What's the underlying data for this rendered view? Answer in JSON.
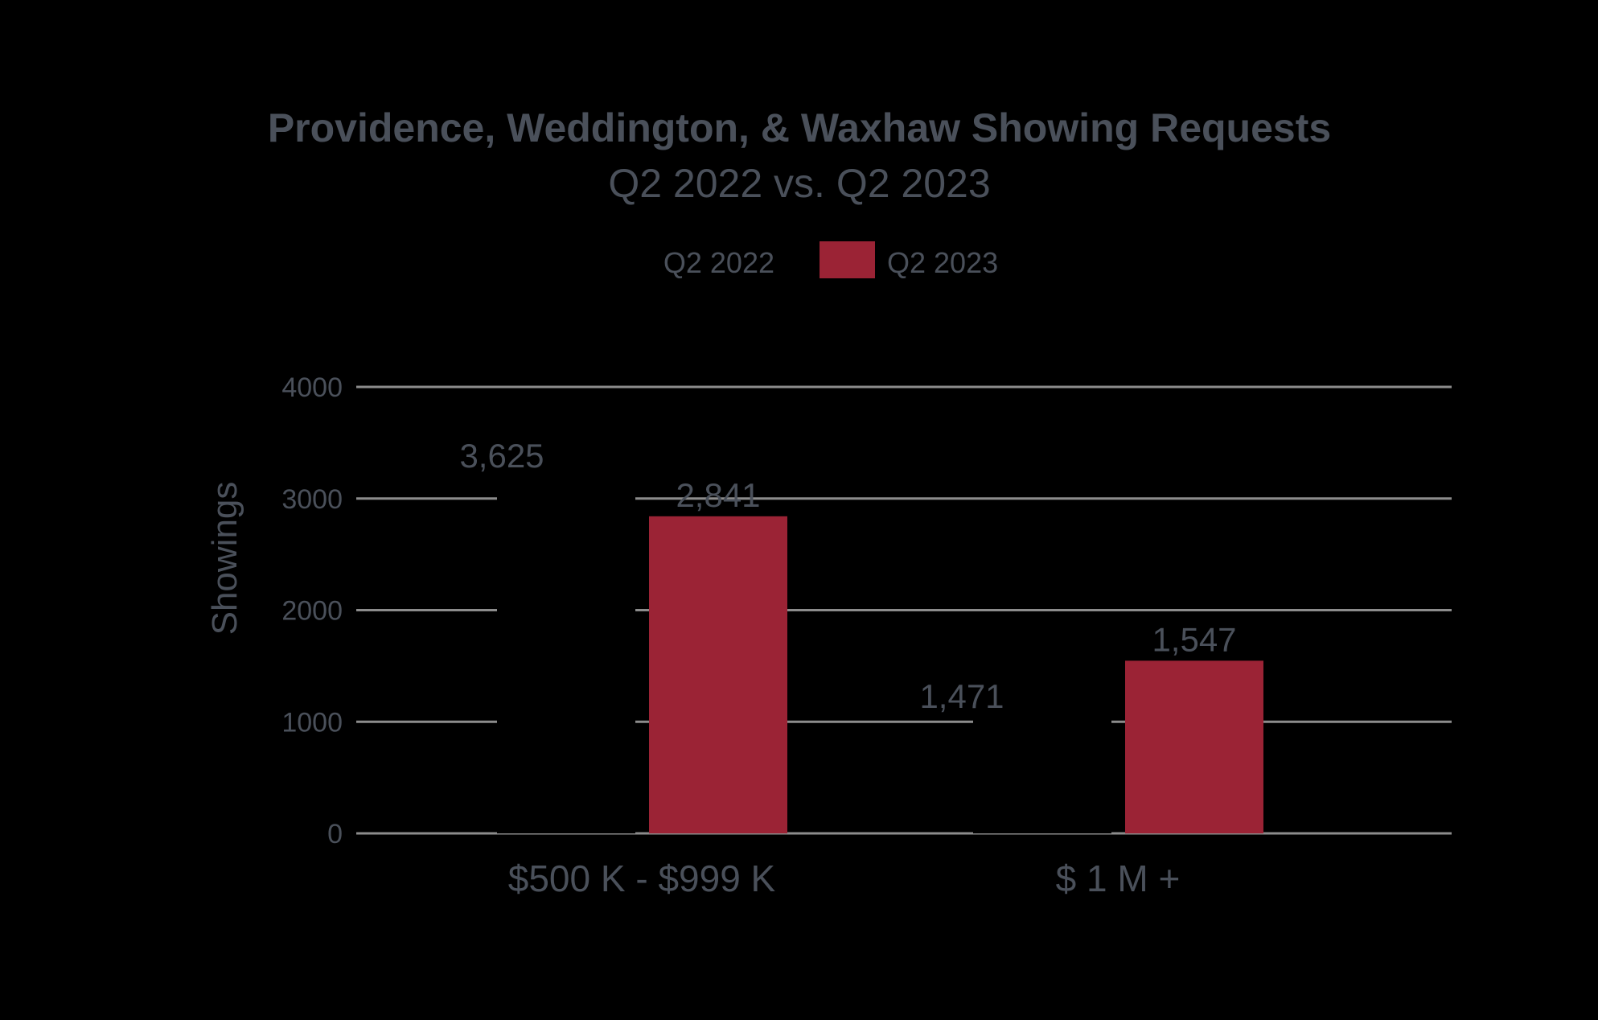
{
  "chart_data": {
    "type": "bar",
    "title": "Providence, Weddington, & Waxhaw Showing Requests",
    "subtitle": "Q2 2022 vs. Q2 2023",
    "ylabel": "Showings",
    "xlabel": "",
    "ylim": [
      0,
      4000
    ],
    "yticks": [
      0,
      1000,
      2000,
      3000,
      4000
    ],
    "grid": true,
    "legend_position": "top-center",
    "categories": [
      "$500 K - $999 K",
      "$ 1 M +"
    ],
    "series": [
      {
        "name": "Q2 2022",
        "values": [
          3625,
          1471
        ],
        "value_labels": [
          "3,625",
          "1,471"
        ],
        "color": "#000000"
      },
      {
        "name": "Q2 2023",
        "values": [
          2841,
          1547
        ],
        "value_labels": [
          "2,841",
          "1,547"
        ],
        "color": "#9b2335"
      }
    ]
  },
  "colors": {
    "background": "#000000",
    "text": "#4a505a",
    "grid": "#8c8c8c",
    "accent": "#9b2335"
  }
}
